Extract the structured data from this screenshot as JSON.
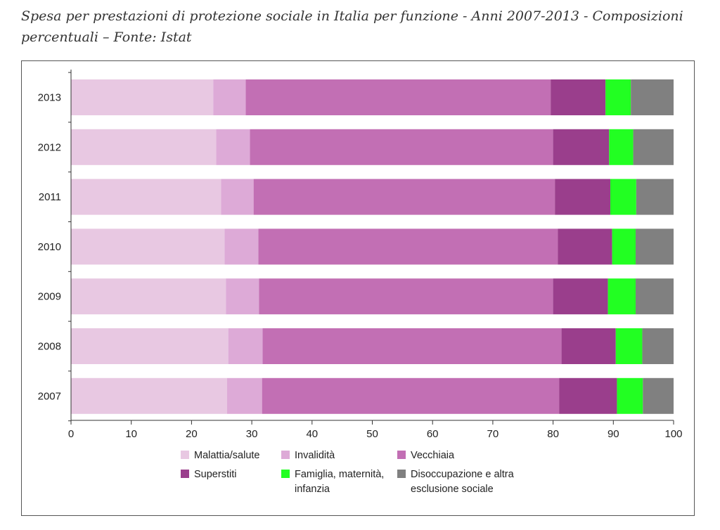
{
  "title_line1": "Spesa per prestazioni di protezione sociale in Italia per funzione - Anni 2007-2013 - Composizioni",
  "title_line2": "percentuali – Fonte: Istat",
  "chart_data": {
    "type": "bar",
    "orientation": "horizontal",
    "stacked": true,
    "title": "Spesa per prestazioni di protezione sociale in Italia per funzione - Anni 2007-2013 - Composizioni percentuali – Fonte: Istat",
    "xlabel": "",
    "ylabel": "",
    "xlim": [
      0,
      100
    ],
    "xticks": [
      "0",
      "10",
      "20",
      "30",
      "40",
      "50",
      "60",
      "70",
      "80",
      "90",
      "100"
    ],
    "legend_position": "bottom",
    "categories": [
      "2013",
      "2012",
      "2011",
      "2010",
      "2009",
      "2008",
      "2007"
    ],
    "series": [
      {
        "name": "Malattia/salute",
        "legend": [
          "Malattia/salute"
        ],
        "color": "#e8c8e2",
        "values": [
          23.6,
          24.1,
          24.9,
          25.5,
          25.7,
          26.1,
          25.9
        ]
      },
      {
        "name": "Invalidità",
        "legend": [
          "Invalidità"
        ],
        "color": "#ddaad7",
        "values": [
          5.4,
          5.6,
          5.4,
          5.6,
          5.5,
          5.7,
          5.8
        ]
      },
      {
        "name": "Vecchiaia",
        "legend": [
          "Vecchiaia"
        ],
        "color": "#c26fb4",
        "values": [
          50.6,
          50.3,
          50.0,
          49.7,
          48.8,
          49.6,
          49.3
        ]
      },
      {
        "name": "Superstiti",
        "legend": [
          "Superstiti"
        ],
        "color": "#9a3e8c",
        "values": [
          9.1,
          9.3,
          9.2,
          9.0,
          9.1,
          9.0,
          9.6
        ]
      },
      {
        "name": "Famiglia, maternità, infanzia",
        "legend": [
          "Famiglia, maternità,",
          "infanzia"
        ],
        "color": "#22ff22",
        "values": [
          4.2,
          4.0,
          4.3,
          3.9,
          4.6,
          4.4,
          4.3
        ]
      },
      {
        "name": "Disoccupazione e altra esclusione sociale",
        "legend": [
          "Disoccupazione e altra",
          "esclusione sociale"
        ],
        "color": "#808080",
        "values": [
          7.1,
          6.7,
          6.2,
          6.3,
          6.3,
          5.2,
          5.1
        ]
      }
    ]
  }
}
